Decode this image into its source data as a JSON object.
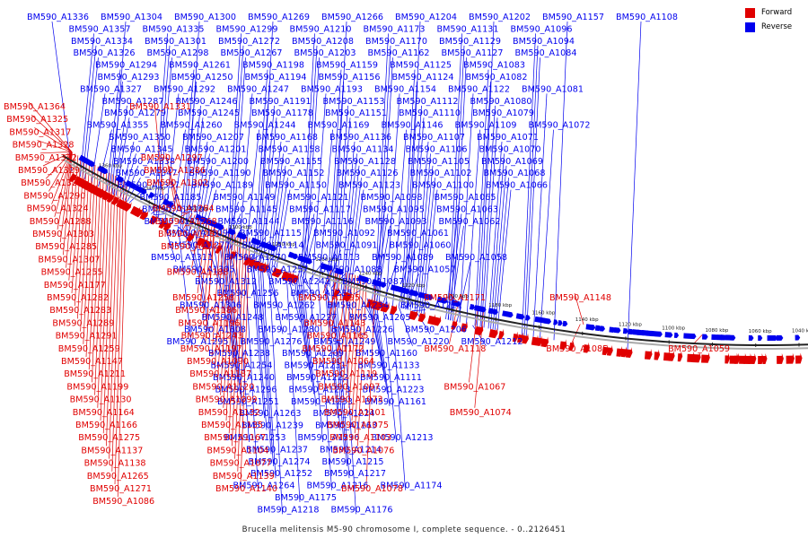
{
  "colors": {
    "forward": "#e00000",
    "reverse": "#0000ee",
    "backbone": "#555555"
  },
  "legend": {
    "forward_label": "Forward",
    "reverse_label": "Reverse"
  },
  "caption": "Brucella melitensis M5-90 chromosome I, complete sequence. - 0..2126451",
  "ruler_marks": [
    "1360 kbp",
    "1340 kbp",
    "1320 kbp",
    "1300 kbp",
    "1280 kbp",
    "1260 kbp",
    "1240 kbp",
    "1220 kbp",
    "1200 kbp",
    "1180 kbp",
    "1160 kbp",
    "1140 kbp",
    "1120 kbp",
    "1100 kbp",
    "1080 kbp",
    "1060 kbp",
    "1040 kbp"
  ],
  "reverse_labels": [
    [
      "BM590_A1336",
      "BM590_A1304",
      "BM590_A1300",
      "BM590_A1269",
      "BM590_A1266",
      "BM590_A1204",
      "BM590_A1202",
      "BM590_A1157",
      "BM590_A1108"
    ],
    [
      "BM590_A1357",
      "BM590_A1335",
      "BM590_A1299",
      "BM590_A1210",
      "BM590_A1173",
      "BM590_A1131",
      "BM590_A1096"
    ],
    [
      "BM590_A1334",
      "BM590_A1301",
      "BM590_A1272",
      "BM590_A1208",
      "BM590_A1170",
      "BM590_A1129",
      "BM590_A1094"
    ],
    [
      "BM590_A1326",
      "BM590_A1298",
      "BM590_A1267",
      "BM590_A1203",
      "BM590_A1162",
      "BM590_A1127",
      "BM590_A1084"
    ],
    [
      "BM590_A1294",
      "BM590_A1261",
      "BM590_A1198",
      "BM590_A1159",
      "BM590_A1125",
      "BM590_A1083"
    ],
    [
      "BM590_A1293",
      "BM590_A1250",
      "BM590_A1194",
      "BM590_A1156",
      "BM590_A1124",
      "BM590_A1082"
    ],
    [
      "BM590_A1327",
      "BM590_A1292",
      "BM590_A1247",
      "BM590_A1193",
      "BM590_A1154",
      "BM590_A1122",
      "BM590_A1081"
    ],
    [
      "BM590_A1287",
      "BM590_A1246",
      "BM590_A1191",
      "BM590_A1153",
      "BM590_A1112",
      "BM590_A1080"
    ],
    [
      "BM590_A1279",
      "BM590_A1245",
      "BM590_A1178",
      "BM590_A1151",
      "BM590_A1110",
      "BM590_A1079"
    ],
    [
      "BM590_A1355",
      "BM590_A1260",
      "BM590_A1244",
      "BM590_A1169",
      "BM590_A1146",
      "BM590_A1109",
      "BM590_A1072"
    ],
    [
      "BM590_A1350",
      "BM590_A1207",
      "BM590_A1168",
      "BM590_A1136",
      "BM590_A1107",
      "BM590_A1071"
    ],
    [
      "BM590_A1345",
      "BM590_A1201",
      "BM590_A1158",
      "BM590_A1134",
      "BM590_A1106",
      "BM590_A1070"
    ],
    [
      "BM590_A1338",
      "BM590_A1200",
      "BM590_A1155",
      "BM590_A1128",
      "BM590_A1105",
      "BM590_A1069"
    ],
    [
      "BM590_A1347",
      "BM590_A1190",
      "BM590_A1152",
      "BM590_A1126",
      "BM590_A1102",
      "BM590_A1068"
    ],
    [
      "BM590_A1337",
      "BM590_A1189",
      "BM590_A1150",
      "BM590_A1123",
      "BM590_A1100",
      "BM590_A1066"
    ],
    [
      "BM590_A1185",
      "BM590_A1149",
      "BM590_A1121",
      "BM590_A1098",
      "BM590_A1065"
    ],
    [
      "BM590_A1310",
      "BM590_A1145",
      "BM590_A1117",
      "BM590_A1095",
      "BM590_A1063"
    ],
    [
      "BM590_A1315",
      "BM590_A1144",
      "BM590_A1116",
      "BM590_A1093",
      "BM590_A1062"
    ],
    [
      "BM590_A1309",
      "BM590_A1115",
      "BM590_A1092",
      "BM590_A1061"
    ],
    [
      "BM590_A1277",
      "BM590_A1114",
      "BM590_A1091",
      "BM590_A1060"
    ],
    [
      "BM590_A1311",
      "BM590_A1270",
      "BM590_A1113",
      "BM590_A1089",
      "BM590_A1058"
    ],
    [
      "BM590_A1305",
      "BM590_A1257",
      "BM590_A1088",
      "BM590_A1057"
    ],
    [
      "BM590_A1312",
      "BM590_A1242",
      "BM590_A1087"
    ],
    [
      "BM590_A1256",
      "BM590_A1235"
    ],
    [
      "BM590_A1306",
      "BM590_A1262",
      "BM590_A1234",
      "BM590_A1221"
    ],
    [
      "BM590_A1248",
      "BM590_A1227",
      "BM590_A1205"
    ],
    [
      "BM590_A1308",
      "BM590_A1280",
      "BM590_A1226",
      "BM590_A1206"
    ],
    [
      "BM590_A1295",
      "BM590_A1276",
      "BM590_A1249",
      "BM590_A1220",
      "BM590_A1212"
    ],
    [
      "BM590_A1238",
      "BM590_A1209",
      "BM590_A1160"
    ],
    [
      "BM590_A1254",
      "BM590_A1231",
      "BM590_A1133"
    ],
    [
      "BM590_A1240",
      "BM590_A1222",
      "BM590_A1111"
    ],
    [
      "BM590_A1296",
      "BM590_A1273",
      "BM590_A1223"
    ],
    [
      "BM590_A1251",
      "BM590_A1233",
      "BM590_A1161"
    ],
    [
      "BM590_A1263",
      "BM590_A1224"
    ],
    [
      "BM590_A1239",
      "BM590_A1163"
    ],
    [
      "BM590_A1253",
      "BM590_A1236",
      "BM590_A1213"
    ],
    [
      "BM590_A1237",
      "BM590_A1214"
    ],
    [
      "BM590_A1274",
      "BM590_A1215"
    ],
    [
      "BM590_A1252",
      "BM590_A1217"
    ],
    [
      "BM590_A1264",
      "BM590_A1216",
      "BM590_A1174"
    ],
    [
      "BM590_A1175"
    ],
    [
      "BM590_A1218",
      "BM590_A1176"
    ]
  ],
  "forward_labels": [
    [
      "BM590_A1364",
      "BM590_A1331"
    ],
    [
      "BM590_A1325"
    ],
    [
      "BM590_A1317"
    ],
    [
      "BM590_A1328"
    ],
    [
      "BM590_A1332",
      "BM590_A1297"
    ],
    [
      "BM590_A1329",
      "BM590_A1286"
    ],
    [
      "BM590_A1322",
      "BM590_A1302"
    ],
    [
      "BM590_A1290"
    ],
    [
      "BM590_A1324",
      "BM590_A1284"
    ],
    [
      "BM590_A1288",
      "BM590_A1268"
    ],
    [
      "BM590_A1303",
      "BM590_A1281"
    ],
    [
      "BM590_A1285",
      "BM590_A1241"
    ],
    [
      "BM590_A1307"
    ],
    [
      "BM590_A1255",
      "BM590_A1188"
    ],
    [
      "BM590_A1177"
    ],
    [
      "BM590_A1282",
      "BM590_A1258",
      "BM590_A1195",
      "BM590_A1171",
      "BM590_A1148"
    ],
    [
      "BM590_A1283",
      "BM590_A1186"
    ],
    [
      "BM590_A1289",
      "BM590_A1196",
      "BM590_A1143"
    ],
    [
      "BM590_A1291",
      "BM590_A1243",
      "BM590_A1165"
    ],
    [
      "BM590_A1259",
      "BM590_A1197",
      "BM590_A1172",
      "BM590_A1118",
      "BM590_A1085",
      "BM590_A1059"
    ],
    [
      "BM590_A1147",
      "BM590_A1090",
      "BM590_A1064"
    ],
    [
      "BM590_A1211",
      "BM590_A1187",
      "BM590_A1119"
    ],
    [
      "BM590_A1199",
      "BM590_A1120",
      "BM590_A1097",
      "BM590_A1067"
    ],
    [
      "BM590_A1130",
      "BM590_A1099",
      "BM590_A1073"
    ],
    [
      "BM590_A1164",
      "BM590_A1132",
      "BM590_A1101",
      "BM590_A1074"
    ],
    [
      "BM590_A1166",
      "BM590_A1135",
      "BM590_A1075"
    ],
    [
      "BM590_A1275",
      "BM590_A1167",
      "BM590_A1103"
    ],
    [
      "BM590_A1137",
      "BM590_A1104",
      "BM590_A1076"
    ],
    [
      "BM590_A1138",
      "BM590_A1077"
    ],
    [
      "BM590_A1265",
      "BM590_A1139"
    ],
    [
      "BM590_A1271",
      "BM590_A1140",
      "BM590_A1078"
    ],
    [
      "BM590_A1086"
    ]
  ]
}
